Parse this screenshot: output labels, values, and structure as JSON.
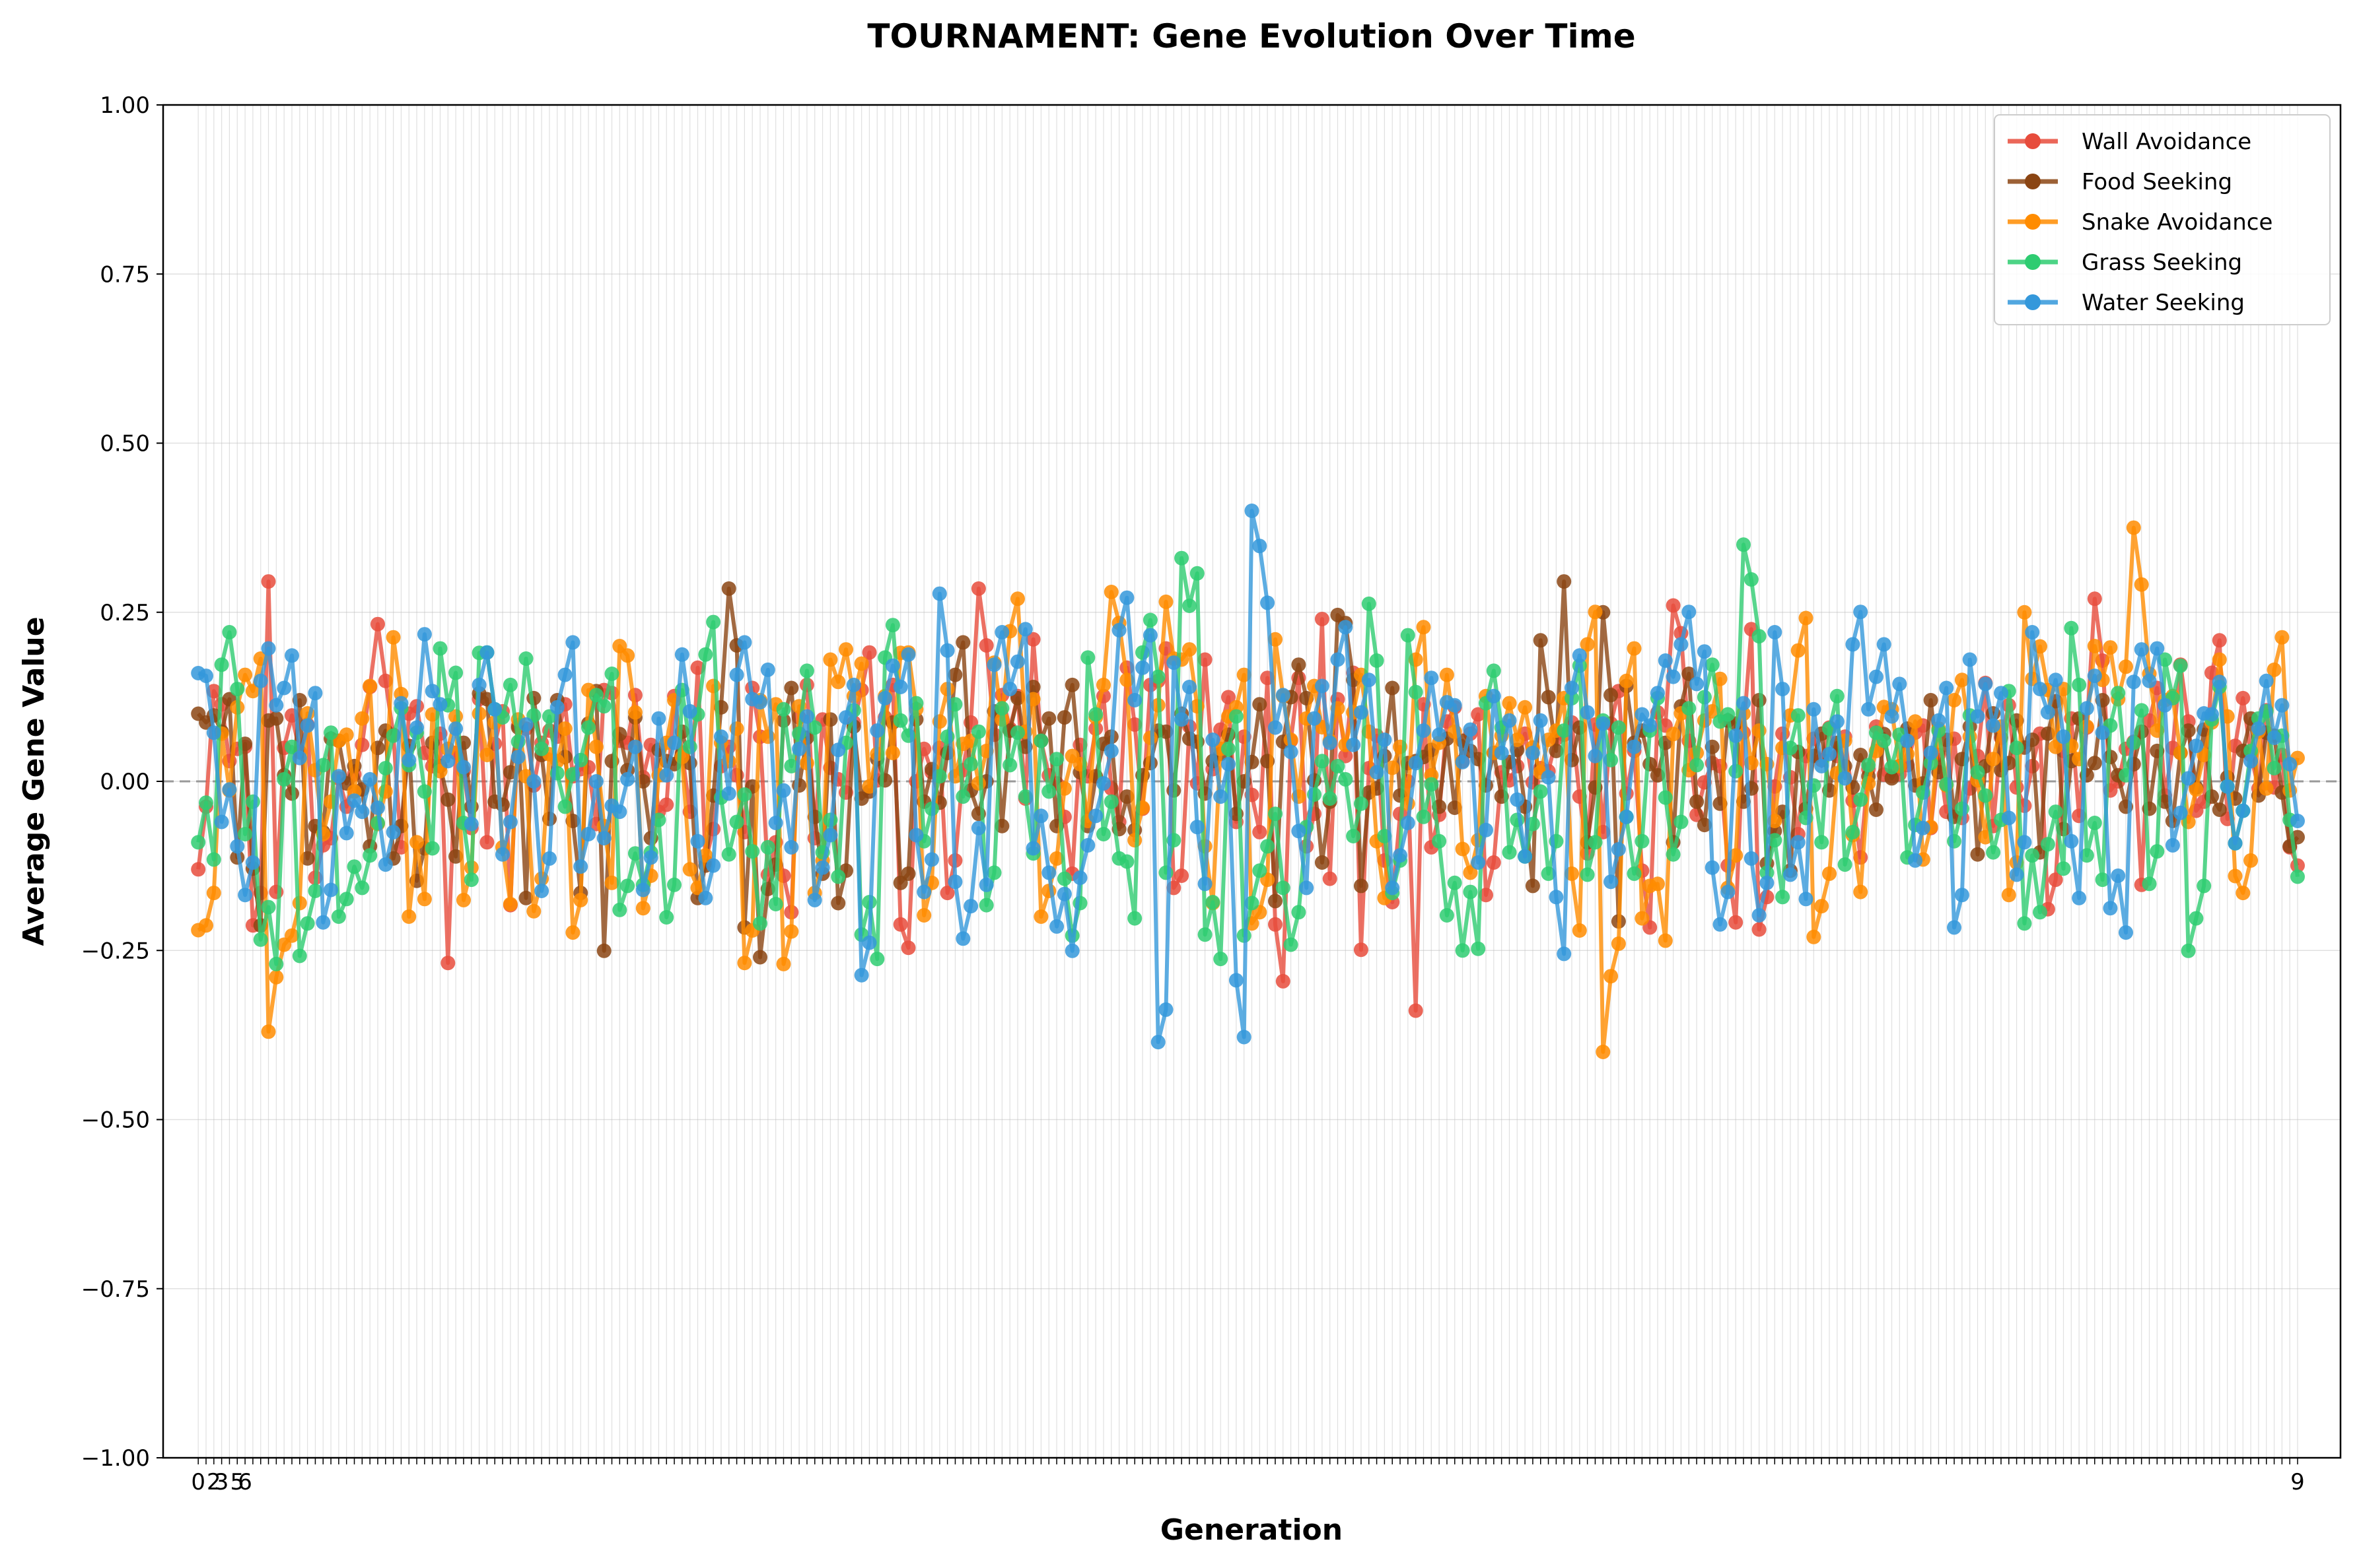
{
  "chart_data": {
    "type": "line",
    "title": "TOURNAMENT: Gene Evolution Over Time",
    "xlabel": "Generation",
    "ylabel": "Average Gene Value",
    "ylim": [
      -1.0,
      1.0
    ],
    "xlim": [
      -4.5,
      274.5
    ],
    "yticks": [
      1.0,
      0.75,
      0.5,
      0.25,
      0.0,
      -0.25,
      -0.5,
      -0.75,
      -1.0
    ],
    "ytick_labels": [
      "1.00",
      "0.75",
      "0.50",
      "0.25",
      "0.00",
      "−0.25",
      "−0.50",
      "−0.75",
      "−1.00"
    ],
    "x_tick_labels_note_visible_fragments": [
      "0",
      "2",
      "3",
      "5",
      "6",
      "9"
    ],
    "grid": true,
    "zero_line": true,
    "legend_position": "top-right",
    "generations": 270,
    "series": [
      {
        "name": "Wall Avoidance",
        "color": "#e74c3c",
        "values": [
          -0.13,
          0.21,
          0.12,
          0.08,
          0.02,
          -0.22,
          0.33,
          -0.17,
          0.05,
          0.09,
          0.08,
          -0.11,
          -0.16,
          0.07,
          -0.05,
          0.12,
          0.17,
          0.23,
          0.06,
          -0.05,
          0.1,
          0.12,
          0.03,
          -0.31,
          0.04,
          -0.06,
          0.13,
          -0.04,
          0.09,
          -0.18,
          0.11,
          0.04,
          0.06,
          0.02,
          0.12,
          0.09,
          0.04,
          -0.02,
          0.18,
          0.11,
          0.06,
          0.09,
          0.04,
          0.02,
          -0.03,
          0.12,
          -0.06,
          0.16,
          -0.11,
          -0.05,
          0.1,
          -0.02,
          0.2,
          0.04,
          -0.12,
          -0.25,
          -0.21,
          0.11,
          -0.08,
          0.09,
          0.02,
          -0.07,
          0.18,
          0.19,
          0.05,
          0.11,
          -0.25,
          -0.36,
          0.08,
          -0.03,
          0.13,
          -0.22,
          0.07,
          0.1,
          0.3,
          0.06,
          0.25,
          0.12,
          0.03,
          0.28,
          0.06,
          -0.02,
          -0.15,
          0.04,
          0.09,
          0.12,
          0.05,
          -0.08,
          0.16,
          -0.07,
          0.11,
          0.23,
          -0.13,
          -0.17,
          0.06,
          0.24,
          -0.04,
          0.15,
          -0.16,
          0.12,
          -0.02,
          0.22,
          -0.33,
          0.08,
          0.14,
          -0.08,
          0.24,
          -0.16,
          0.13,
          0.23,
          -0.38,
          0.09,
          -0.22,
          -0.19,
          -0.08,
          -0.42,
          0.12,
          -0.05,
          0.07,
          0.21,
          0.03,
          0.18,
          -0.24,
          0.05,
          -0.03,
          0.11,
          -0.05,
          0.09,
          0.02,
          0.14,
          0.1,
          -0.11,
          0.08,
          -0.02,
          0.13,
          0.04,
          0.06,
          -0.24,
          0.12,
          0.03,
          0.26,
          0.16,
          -0.05,
          0.1,
          0.03,
          -0.23,
          0.08,
          0.22,
          -0.26,
          0.07,
          0.11,
          -0.04,
          0.05,
          0.02,
          0.09,
          -0.03,
          0.12,
          -0.07,
          0.04,
          0.06,
          0.01,
          -0.05,
          0.08,
          0.03,
          -0.06,
          0.02,
          0.1,
          -0.12,
          0.05,
          0.13,
          -0.04,
          0.07,
          0.02,
          -0.08,
          0.11,
          -0.3,
          -0.13,
          0.06,
          -0.02,
          0.09,
          0.27,
          -0.05,
          0.08,
          0.03,
          -0.14,
          0.12,
          0.02,
          0.05,
          0.15,
          -0.09,
          0.04,
          0.23,
          -0.01,
          0.07,
          0.1,
          -0.03,
          0.06,
          0.02,
          -0.05,
          -0.15
        ]
      },
      {
        "name": "Food Seeking",
        "color": "#8b4513",
        "values": [
          0.1,
          0.05,
          0.13,
          -0.07,
          0.09,
          -0.22,
          0.12,
          0.06,
          -0.04,
          0.08,
          -0.12,
          -0.02,
          0.1,
          0.06,
          0.03,
          -0.08,
          0.05,
          0.02,
          -0.12,
          0.15,
          -0.18,
          0.14,
          0.03,
          -0.1,
          0.06,
          -0.13,
          0.13,
          0.04,
          -0.03,
          0.17,
          -0.23,
          0.1,
          -0.09,
          0.08,
          -0.11,
          -0.14,
          0.13,
          -0.27,
          0.04,
          0.07,
          0.11,
          -0.08,
          0.03,
          0.12,
          0.05,
          0.1,
          -0.23,
          0.02,
          0.13,
          0.3,
          -0.32,
          0.07,
          -0.26,
          -0.1,
          0.12,
          0.04,
          0.07,
          -0.15,
          0.09,
          -0.16,
          0.06,
          0.03,
          -0.02,
          0.05,
          0.1,
          -0.15,
          0.09,
          0.04,
          -0.09,
          0.12,
          0.21,
          0.03,
          -0.08,
          0.17,
          -0.12,
          0.18,
          0.02,
          0.25,
          0.06,
          -0.04,
          0.11,
          0.05,
          -0.12,
          0.09,
          0.04,
          -0.03,
          -0.16,
          0.06,
          0.02,
          0.13,
          -0.05,
          0.1,
          0.03,
          0.04,
          -0.01,
          0.14,
          -0.08,
          0.07,
          0.12,
          -0.22,
          0.03,
          0.23,
          0.1,
          0.05,
          -0.12,
          0.36,
          0.28,
          -0.19,
          -0.07,
          0.05,
          0.12,
          0.02,
          -0.04,
          0.08,
          0.03,
          0.1,
          -0.1,
          0.06,
          -0.02,
          0.04,
          -0.11,
          0.07,
          0.03,
          -0.19,
          0.23,
          0.06,
          0.33,
          0.09,
          -0.2,
          0.02,
          0.25,
          -0.26,
          0.14,
          0.1,
          -0.03,
          0.06,
          -0.2,
          0.18,
          0.04,
          -0.07,
          0.02,
          0.12,
          0.05,
          -0.03,
          0.08,
          -0.13,
          0.02,
          -0.16,
          0.01,
          0.05,
          0.03,
          0.06,
          -0.05,
          0.02,
          0.09,
          -0.04,
          0.07,
          0.03,
          0.04,
          -0.02,
          0.08,
          0.05,
          0.01,
          0.06,
          -0.08,
          0.03,
          0.07,
          0.02,
          0.04,
          0.05,
          -0.06,
          0.11,
          -0.03,
          0.04,
          0.06,
          0.02,
          0.08,
          -0.02,
          0.03,
          0.05,
          0.01,
          0.06,
          -0.03,
          0.04,
          0.02,
          0.07,
          0.05,
          -0.04,
          0.03,
          0.06,
          0.02,
          0.08,
          0.01,
          -0.16,
          -0.03
        ]
      },
      {
        "name": "Snake Avoidance",
        "color": "#ff8c00",
        "values": [
          -0.22,
          0.03,
          0.13,
          0.21,
          -0.37,
          -0.24,
          0.07,
          -0.12,
          0.06,
          0.14,
          -0.02,
          0.22,
          -0.2,
          0.1,
          0.08,
          -0.17,
          0.1,
          -0.21,
          0.09,
          -0.24,
          0.04,
          -0.25,
          0.1,
          -0.12,
          0.2,
          -0.25,
          0.06,
          0.08,
          -0.13,
          0.14,
          0.04,
          -0.31,
          0.12,
          -0.28,
          0.1,
          -0.22,
          0.18,
          0.2,
          0.07,
          0.12,
          0.19,
          -0.28,
          0.15,
          0.09,
          0.06,
          0.17,
          0.28,
          0.13,
          -0.2,
          0.05,
          -0.03,
          0.11,
          0.28,
          -0.1,
          0.15,
          0.29,
          0.18,
          -0.16,
          0.08,
          0.21,
          -0.21,
          0.2,
          0.05,
          0.14,
          0.08,
          0.12,
          0.13,
          -0.15,
          0.02,
          0.24,
          0.06,
          0.13,
          -0.1,
          0.12,
          0.09,
          0.13,
          0.05,
          0.18,
          -0.23,
          0.27,
          -0.4,
          0.23,
          -0.19,
          -0.25,
          0.07,
          0.04,
          0.17,
          -0.13,
          0.1,
          -0.03,
          0.05,
          0.29,
          -0.23,
          0.08,
          -0.17,
          -0.02,
          0.11,
          0.07,
          -0.09,
          0.04,
          0.12,
          -0.03,
          0.06,
          -0.16,
          0.25,
          0.1,
          0.15,
          0.06,
          0.2,
          0.21,
          0.42,
          0.18,
          0.12,
          -0.08,
          0.1,
          0.16,
          -0.14,
          0.05,
          0.22,
          0.03
        ]
      },
      {
        "name": "Grass Seeking",
        "color": "#2ecc71",
        "values": [
          -0.09,
          0.23,
          -0.12,
          -0.28,
          0.02,
          -0.28,
          0.08,
          -0.2,
          -0.13,
          0.09,
          0.08,
          -0.1,
          0.23,
          -0.13,
          0.19,
          0.11,
          0.21,
          0.08,
          -0.05,
          0.09,
          0.18,
          -0.19,
          -0.14,
          -0.22,
          0.1,
          0.33,
          -0.08,
          -0.09,
          -0.21,
          0.11,
          0.17,
          -0.14,
          0.06,
          -0.27,
          0.26,
          0.09,
          -0.07,
          0.12,
          0.05,
          -0.18,
          0.08,
          -0.11,
          0.06,
          -0.24,
          0.18,
          -0.12,
          -0.19,
          0.27,
          -0.18,
          0.33,
          -0.27,
          0.08,
          -0.24,
          -0.08,
          -0.29,
          -0.01,
          0.03,
          -0.06,
          0.27,
          -0.14,
          0.24,
          -0.07,
          -0.28,
          -0.25,
          0.17,
          -0.14,
          -0.1,
          -0.15,
          0.18,
          -0.12,
          0.09,
          -0.15,
          0.18,
          -0.08,
          0.08,
          0.15,
          0.1,
          0.35,
          -0.18,
          0.05,
          -0.04,
          0.12,
          -0.1,
          0.08,
          0.06,
          -0.07,
          0.1,
          -0.07,
          0.05,
          -0.06,
          0.13,
          -0.21,
          -0.14,
          0.27,
          -0.13,
          0.11,
          0.06,
          -0.17,
          0.18,
          -0.27,
          0.17,
          -0.09,
          0.14,
          0.09,
          -0.14
        ]
      },
      {
        "name": "Water Seeking",
        "color": "#3498db",
        "values": [
          0.16,
          -0.08,
          -0.24,
          0.23,
          0.2,
          0.11,
          -0.23,
          -0.07,
          0.02,
          -0.1,
          0.09,
          0.21,
          0.12,
          -0.02,
          0.19,
          -0.16,
          0.08,
          -0.2,
          0.21,
          -0.12,
          -0.08,
          0.02,
          -0.15,
          0.06,
          0.17,
          -0.15,
          0.04,
          0.21,
          0.14,
          -0.05,
          0.08,
          -0.17,
          0.11,
          -0.35,
          0.18,
          0.25,
          -0.17,
          0.29,
          -0.23,
          -0.14,
          0.23,
          0.22,
          -0.1,
          -0.27,
          -0.19,
          -0.02,
          0.33,
          0.24,
          -0.45,
          0.17,
          -0.17,
          0.05,
          -0.44,
          0.4,
          0.09,
          -0.13,
          0.14,
          0.24,
          0.12,
          0.05,
          -0.13,
          0.1,
          0.14,
          0.07,
          -0.08,
          0.12,
          -0.1,
          0.04,
          -0.26,
          0.2,
          0.05,
          -0.15,
          0.1,
          0.19,
          0.27,
          0.24,
          -0.25,
          0.17,
          -0.2,
          0.23,
          -0.2,
          0.11,
          0.07,
          0.27,
          0.19,
          0.16,
          -0.14,
          0.12,
          -0.24,
          0.16,
          0.19,
          -0.12,
          0.23,
          0.12,
          -0.15,
          0.16,
          -0.25,
          0.18,
          0.23,
          -0.11,
          0.07,
          0.18,
          -0.09,
          0.12,
          0.15,
          -0.03
        ]
      }
    ]
  }
}
